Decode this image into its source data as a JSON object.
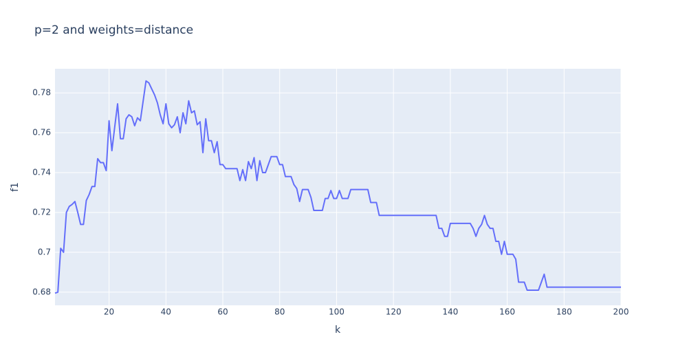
{
  "chart_data": {
    "type": "line",
    "title": "p=2 and weights=distance",
    "x_label": "k",
    "y_label": "f1",
    "x": [
      1,
      2,
      3,
      4,
      5,
      6,
      7,
      8,
      9,
      10,
      11,
      12,
      13,
      14,
      15,
      16,
      17,
      18,
      19,
      20,
      21,
      22,
      23,
      24,
      25,
      26,
      27,
      28,
      29,
      30,
      31,
      32,
      33,
      34,
      35,
      36,
      37,
      38,
      39,
      40,
      41,
      42,
      43,
      44,
      45,
      46,
      47,
      48,
      49,
      50,
      51,
      52,
      53,
      54,
      55,
      56,
      57,
      58,
      59,
      60,
      61,
      62,
      63,
      64,
      65,
      66,
      67,
      68,
      69,
      70,
      71,
      72,
      73,
      74,
      75,
      76,
      77,
      78,
      79,
      80,
      81,
      82,
      83,
      84,
      85,
      86,
      87,
      88,
      89,
      90,
      91,
      92,
      93,
      94,
      95,
      96,
      97,
      98,
      99,
      100,
      101,
      102,
      103,
      104,
      105,
      106,
      107,
      108,
      109,
      110,
      111,
      112,
      113,
      114,
      115,
      116,
      117,
      118,
      119,
      120,
      121,
      122,
      123,
      124,
      125,
      126,
      127,
      128,
      129,
      130,
      131,
      132,
      133,
      134,
      135,
      136,
      137,
      138,
      139,
      140,
      141,
      142,
      143,
      144,
      145,
      146,
      147,
      148,
      149,
      150,
      151,
      152,
      153,
      154,
      155,
      156,
      157,
      158,
      159,
      160,
      161,
      162,
      163,
      164,
      165,
      166,
      167,
      168,
      169,
      170,
      171,
      172,
      173,
      174,
      175,
      176,
      177,
      178,
      179,
      180,
      181,
      182,
      183,
      184,
      185,
      186,
      187,
      188,
      189,
      190,
      191,
      192,
      193,
      194,
      195,
      196,
      197,
      198,
      199,
      200
    ],
    "values": [
      0.6795,
      0.68,
      0.702,
      0.7,
      0.72,
      0.723,
      0.724,
      0.7255,
      0.72,
      0.714,
      0.714,
      0.726,
      0.729,
      0.733,
      0.733,
      0.747,
      0.745,
      0.745,
      0.741,
      0.766,
      0.751,
      0.763,
      0.7745,
      0.757,
      0.757,
      0.767,
      0.769,
      0.768,
      0.7635,
      0.7675,
      0.766,
      0.776,
      0.786,
      0.785,
      0.782,
      0.779,
      0.775,
      0.769,
      0.7645,
      0.7745,
      0.7645,
      0.7625,
      0.764,
      0.768,
      0.76,
      0.77,
      0.7645,
      0.776,
      0.77,
      0.771,
      0.764,
      0.7655,
      0.75,
      0.767,
      0.756,
      0.756,
      0.75,
      0.7555,
      0.744,
      0.744,
      0.742,
      0.742,
      0.742,
      0.742,
      0.742,
      0.736,
      0.7415,
      0.736,
      0.7455,
      0.742,
      0.7475,
      0.736,
      0.746,
      0.74,
      0.74,
      0.744,
      0.748,
      0.748,
      0.748,
      0.744,
      0.744,
      0.738,
      0.738,
      0.738,
      0.734,
      0.732,
      0.7255,
      0.7315,
      0.7315,
      0.7315,
      0.7275,
      0.721,
      0.721,
      0.721,
      0.721,
      0.727,
      0.727,
      0.731,
      0.727,
      0.727,
      0.731,
      0.727,
      0.727,
      0.727,
      0.7315,
      0.7315,
      0.7315,
      0.7315,
      0.7315,
      0.7315,
      0.7315,
      0.725,
      0.725,
      0.725,
      0.7185,
      0.7185,
      0.7185,
      0.7185,
      0.7185,
      0.7185,
      0.7185,
      0.7185,
      0.7185,
      0.7185,
      0.7185,
      0.7185,
      0.7185,
      0.7185,
      0.7185,
      0.7185,
      0.7185,
      0.7185,
      0.7185,
      0.7185,
      0.7185,
      0.712,
      0.712,
      0.708,
      0.708,
      0.7145,
      0.7145,
      0.7145,
      0.7145,
      0.7145,
      0.7145,
      0.7145,
      0.7145,
      0.712,
      0.708,
      0.712,
      0.714,
      0.7185,
      0.714,
      0.712,
      0.712,
      0.7055,
      0.7055,
      0.699,
      0.7055,
      0.699,
      0.699,
      0.699,
      0.6965,
      0.685,
      0.685,
      0.685,
      0.681,
      0.681,
      0.681,
      0.681,
      0.681,
      0.685,
      0.689,
      0.6825,
      0.6825,
      0.6825,
      0.6825,
      0.6825,
      0.6825,
      0.6825,
      0.6825,
      0.6825,
      0.6825,
      0.6825,
      0.6825,
      0.6825,
      0.6825,
      0.6825,
      0.6825,
      0.6825,
      0.6825,
      0.6825,
      0.6825,
      0.6825,
      0.6825,
      0.6825,
      0.6825,
      0.6825,
      0.6825,
      0.6825
    ],
    "color": "#636efa",
    "xlim": [
      1,
      200
    ],
    "xticks": [
      20,
      40,
      60,
      80,
      100,
      120,
      140,
      160,
      180,
      200
    ],
    "ylim": [
      0.6734,
      0.7921
    ],
    "yticks": [
      0.68,
      0.7,
      0.72,
      0.74,
      0.76,
      0.78
    ],
    "grid": true
  }
}
